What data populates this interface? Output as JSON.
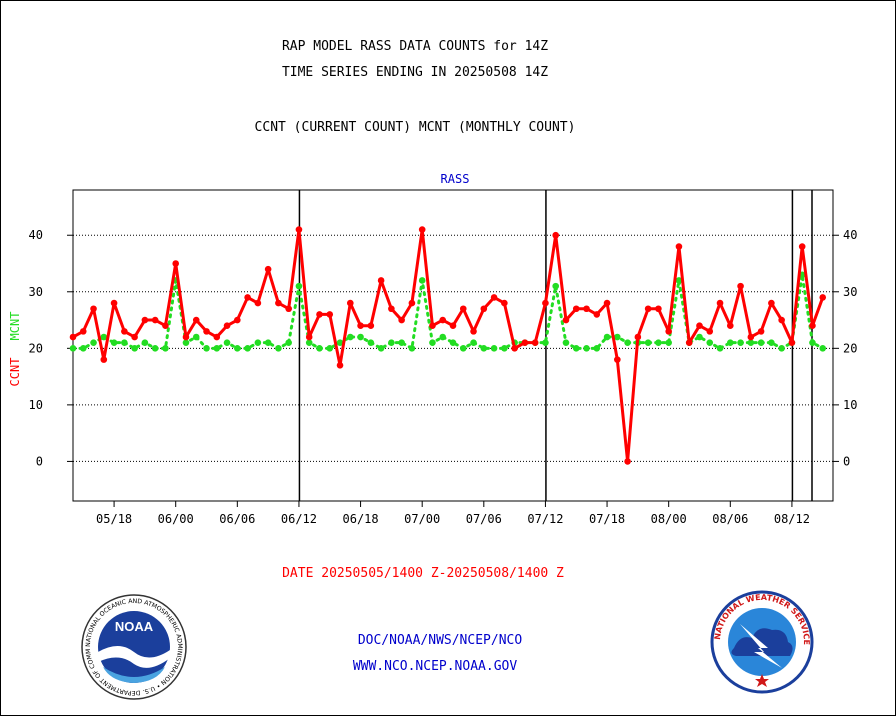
{
  "header": {
    "title_line1": "RAP MODEL RASS DATA COUNTS for 14Z",
    "title_line2": "TIME SERIES ENDING IN 20250508 14Z",
    "subtitle": "CCNT (CURRENT COUNT) MCNT (MONTHLY COUNT)"
  },
  "footer": {
    "date_range": "DATE 20250505/1400 Z-20250508/1400 Z",
    "org": "DOC/NOAA/NWS/NCEP/NCO",
    "url": "WWW.NCO.NCEP.NOAA.GOV"
  },
  "logos": {
    "noaa_text": "NOAA",
    "noaa_ring_text": "NATIONAL OCEANIC AND ATMOSPHERIC ADMINISTRATION • U.S. DEPARTMENT OF COMMERCE •",
    "nws_ring_text": "NATIONAL WEATHER SERVICE"
  },
  "colors": {
    "ccnt": "#ff0000",
    "mcnt": "#22dd22",
    "panel_label": "#0000cc",
    "footer_red": "#ff0000",
    "footer_blue": "#0000cc"
  },
  "chart_data": {
    "type": "line",
    "panel_label": "RASS",
    "ylabel_ccnt": "CCNT",
    "ylabel_mcnt": "MCNT",
    "ylim": [
      -7,
      48
    ],
    "yticks": [
      0,
      10,
      20,
      30,
      40
    ],
    "grid": "horizontal dotted at y ticks",
    "x_tick_labels": [
      "05/18",
      "06/00",
      "06/06",
      "06/12",
      "06/18",
      "07/00",
      "07/06",
      "07/12",
      "07/18",
      "08/00",
      "08/06",
      "08/12"
    ],
    "series": [
      {
        "name": "CCNT",
        "values": [
          22,
          23,
          27,
          18,
          28,
          23,
          22,
          25,
          25,
          24,
          35,
          22,
          25,
          23,
          22,
          24,
          25,
          29,
          28,
          34,
          28,
          27,
          41,
          22,
          26,
          26,
          17,
          28,
          24,
          24,
          32,
          27,
          25,
          28,
          41,
          24,
          25,
          24,
          27,
          23,
          27,
          29,
          28,
          20,
          21,
          21,
          28,
          40,
          25,
          27,
          27,
          26,
          28,
          18,
          0,
          22,
          27,
          27,
          23,
          38,
          21,
          24,
          23,
          28,
          24,
          31,
          22,
          23,
          28,
          25,
          21,
          38,
          24,
          29
        ]
      },
      {
        "name": "MCNT",
        "values": [
          20,
          20,
          21,
          22,
          21,
          21,
          20,
          21,
          20,
          20,
          32,
          21,
          22,
          20,
          20,
          21,
          20,
          20,
          21,
          21,
          20,
          21,
          31,
          21,
          20,
          20,
          21,
          22,
          22,
          21,
          20,
          21,
          21,
          20,
          32,
          21,
          22,
          21,
          20,
          21,
          20,
          20,
          20,
          21,
          21,
          21,
          21,
          31,
          21,
          20,
          20,
          20,
          22,
          22,
          21,
          21,
          21,
          21,
          21,
          32,
          21,
          22,
          21,
          20,
          21,
          21,
          21,
          21,
          21,
          20,
          21,
          33,
          21,
          20
        ]
      }
    ]
  }
}
